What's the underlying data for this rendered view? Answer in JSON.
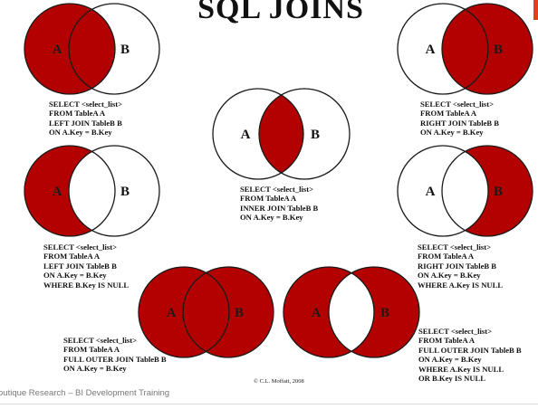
{
  "title": "SQL JOINS",
  "colors": {
    "fill": "#b30000",
    "stroke": "#1a1a1a",
    "accent": "#e2401c"
  },
  "diagrams": [
    {
      "id": "left-join",
      "fill_parts": [
        "a_only",
        "overlap"
      ],
      "label_a": "A",
      "label_b": "B",
      "sql": [
        "SELECT <select_list>",
        "FROM TableA A",
        "LEFT JOIN TableB B",
        "ON A.Key = B.Key"
      ]
    },
    {
      "id": "inner-join",
      "fill_parts": [
        "overlap"
      ],
      "label_a": "A",
      "label_b": "B",
      "sql": [
        "SELECT <select_list>",
        "FROM TableA A",
        "INNER JOIN TableB B",
        "ON A.Key = B.Key"
      ]
    },
    {
      "id": "right-join",
      "fill_parts": [
        "b_only",
        "overlap"
      ],
      "label_a": "A",
      "label_b": "B",
      "sql": [
        "SELECT <select_list>",
        "FROM TableA A",
        "RIGHT JOIN TableB B",
        "ON A.Key = B.Key"
      ]
    },
    {
      "id": "left-join-null",
      "fill_parts": [
        "a_only"
      ],
      "label_a": "A",
      "label_b": "B",
      "sql": [
        "SELECT <select_list>",
        "FROM TableA A",
        "LEFT JOIN TableB B",
        "ON A.Key = B.Key",
        "WHERE B.Key IS NULL"
      ]
    },
    {
      "id": "right-join-null",
      "fill_parts": [
        "b_only"
      ],
      "label_a": "A",
      "label_b": "B",
      "sql": [
        "SELECT <select_list>",
        "FROM TableA A",
        "RIGHT JOIN TableB B",
        "ON A.Key = B.Key",
        "WHERE A.Key IS NULL"
      ]
    },
    {
      "id": "full-outer-join",
      "fill_parts": [
        "a_only",
        "overlap",
        "b_only"
      ],
      "label_a": "A",
      "label_b": "B",
      "sql": [
        "SELECT <select_list>",
        "FROM TableA A",
        "FULL OUTER JOIN TableB B",
        "ON A.Key = B.Key"
      ]
    },
    {
      "id": "full-outer-join-null",
      "fill_parts": [
        "a_only",
        "b_only"
      ],
      "label_a": "A",
      "label_b": "B",
      "sql": [
        "SELECT <select_list>",
        "FROM TableA A",
        "FULL OUTER JOIN TableB B",
        "ON A.Key = B.Key",
        "WHERE A.Key IS NULL",
        "OR B.Key IS NULL"
      ]
    }
  ],
  "copyright": "© C.L. Moffatt, 2008",
  "footer": "outique Research – BI Development Training"
}
